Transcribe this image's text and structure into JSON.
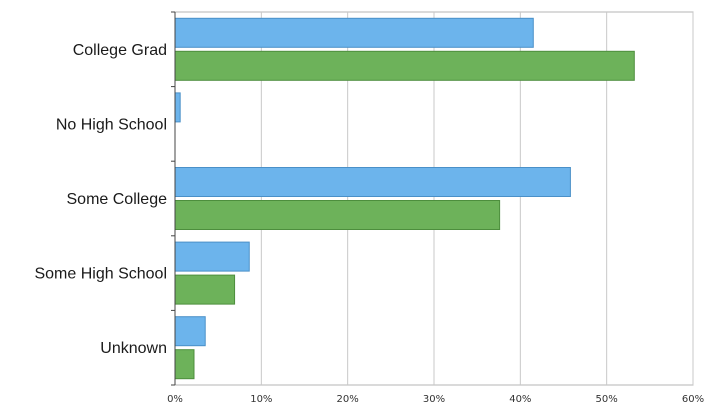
{
  "chart_data": {
    "type": "bar",
    "orientation": "horizontal",
    "categories": [
      "College Grad",
      "No High School",
      "Some College",
      "Some High School",
      "Unknown"
    ],
    "series": [
      {
        "values": [
          41.5,
          0.6,
          45.8,
          8.6,
          3.5
        ]
      },
      {
        "values": [
          53.2,
          0,
          37.6,
          6.9,
          2.2
        ]
      }
    ],
    "colors": [
      "#6cb4ec",
      "#6db25a"
    ],
    "value_axis": {
      "ticks": [
        0,
        10,
        20,
        30,
        40,
        50,
        60
      ],
      "tick_labels": [
        "0%",
        "10%",
        "20%",
        "30%",
        "40%",
        "50%",
        "60%"
      ],
      "range": [
        0,
        60
      ]
    },
    "title": "",
    "xlabel": "",
    "ylabel": "",
    "grid": true,
    "legend": "none"
  }
}
